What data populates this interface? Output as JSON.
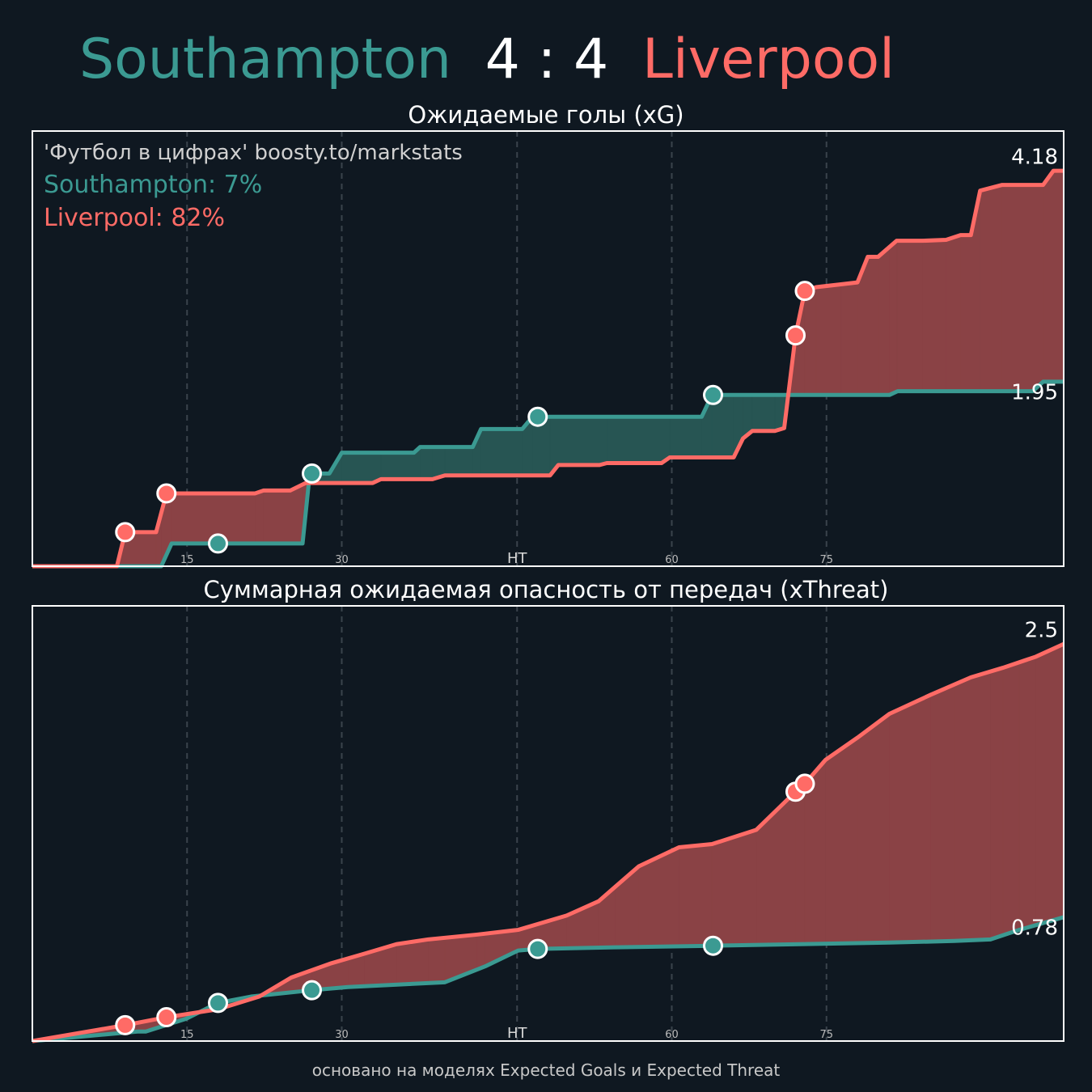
{
  "header": {
    "home": "Southampton",
    "score": "4 : 4",
    "away": "Liverpool"
  },
  "chart_data": [
    {
      "type": "line",
      "title": "Ожидаемые голы (xG)",
      "xlim": [
        0,
        100
      ],
      "xticks": [
        15,
        30,
        {
          "value": 47,
          "label": "HT"
        },
        {
          "value": 62,
          "label": "60"
        },
        {
          "value": 77,
          "label": "75"
        }
      ],
      "ylim": [
        0,
        4.6
      ],
      "grid": true,
      "annotations": [
        {
          "text": "'Футбол в цифрах' boosty.to/markstats",
          "color": "#d0d0d0"
        },
        {
          "text": "Southampton: 7%",
          "color": "#3b9a92"
        },
        {
          "text": "Liverpool: 82%",
          "color": "#ff6b66"
        }
      ],
      "series": [
        {
          "name": "Southampton",
          "color": "#3b9a92",
          "x": [
            0,
            12.5,
            13.5,
            26.2,
            26.9,
            28.8,
            30,
            37,
            37.6,
            42.7,
            43.5,
            47.5,
            48.5,
            64.9,
            65.9,
            83.1,
            83.9,
            97,
            98,
            100
          ],
          "values": [
            0,
            0,
            0.24,
            0.24,
            0.98,
            0.98,
            1.2,
            1.2,
            1.26,
            1.26,
            1.45,
            1.45,
            1.58,
            1.58,
            1.81,
            1.81,
            1.85,
            1.85,
            1.95,
            1.95
          ],
          "goals_x": [
            18.0,
            27.1,
            49.0,
            66.0
          ],
          "goals_values": [
            0.24,
            0.98,
            1.58,
            1.81
          ]
        },
        {
          "name": "Liverpool",
          "color": "#ff6b66",
          "x": [
            0,
            8.2,
            9,
            12,
            13,
            21.6,
            22.4,
            25,
            26.5,
            33,
            33.8,
            38.8,
            40,
            50.2,
            51,
            55,
            55.7,
            61,
            61.8,
            68,
            68.9,
            69.8,
            72,
            72.9,
            74,
            74.9,
            76,
            78.4,
            80,
            81,
            82,
            83.8,
            86.3,
            88.6,
            90,
            91,
            91.9,
            94,
            98,
            99,
            100
          ],
          "values": [
            0,
            0,
            0.36,
            0.36,
            0.77,
            0.77,
            0.8,
            0.8,
            0.88,
            0.88,
            0.92,
            0.92,
            0.96,
            0.96,
            1.07,
            1.07,
            1.09,
            1.09,
            1.15,
            1.15,
            1.35,
            1.43,
            1.43,
            1.46,
            2.44,
            2.91,
            2.95,
            2.98,
            3.0,
            3.27,
            3.27,
            3.44,
            3.44,
            3.45,
            3.5,
            3.5,
            3.97,
            4.03,
            4.03,
            4.18,
            4.18
          ],
          "goals_x": [
            9.0,
            13.0,
            74.0,
            74.9
          ],
          "goals_values": [
            0.36,
            0.77,
            2.44,
            2.91
          ]
        }
      ]
    },
    {
      "type": "line",
      "title": "Суммарная ожидаемая опасность от передач (xThreat)",
      "xlim": [
        0,
        100
      ],
      "xticks": [
        15,
        30,
        {
          "value": 47,
          "label": "HT"
        },
        {
          "value": 62,
          "label": "60"
        },
        {
          "value": 77,
          "label": "75"
        }
      ],
      "ylim": [
        0,
        2.74
      ],
      "grid": true,
      "series": [
        {
          "name": "Southampton",
          "color": "#3b9a92",
          "x": [
            0,
            10.2,
            11,
            14.9,
            18,
            21.2,
            27.1,
            30.6,
            40,
            43.9,
            47.1,
            49,
            56.5,
            66,
            83.1,
            89.4,
            92.9,
            95.7,
            100
          ],
          "values": [
            0,
            0.06,
            0.06,
            0.14,
            0.24,
            0.28,
            0.32,
            0.34,
            0.37,
            0.47,
            0.57,
            0.58,
            0.59,
            0.6,
            0.62,
            0.63,
            0.64,
            0.7,
            0.78
          ],
          "goals_x": [
            18.0,
            27.1,
            49.0,
            66.0
          ],
          "goals_values": [
            0.24,
            0.32,
            0.58,
            0.6
          ]
        },
        {
          "name": "Liverpool",
          "color": "#ff6b66",
          "x": [
            0,
            9,
            13,
            18,
            22,
            25.1,
            29,
            32.2,
            35.3,
            38.4,
            43.1,
            47.1,
            51.8,
            54.9,
            58.8,
            62.7,
            65.9,
            70.2,
            74,
            74.9,
            76.9,
            80,
            83.1,
            87.1,
            91,
            94.1,
            97.3,
            100
          ],
          "values": [
            0,
            0.1,
            0.15,
            0.2,
            0.28,
            0.4,
            0.49,
            0.55,
            0.61,
            0.64,
            0.67,
            0.7,
            0.79,
            0.88,
            1.1,
            1.22,
            1.24,
            1.33,
            1.57,
            1.62,
            1.77,
            1.91,
            2.06,
            2.18,
            2.29,
            2.35,
            2.42,
            2.5
          ],
          "goals_x": [
            9.0,
            13.0,
            74.0,
            74.9
          ],
          "goals_values": [
            0.1,
            0.15,
            1.57,
            1.62
          ]
        }
      ]
    }
  ],
  "footer": "основано на моделях Expected Goals и Expected Threat"
}
